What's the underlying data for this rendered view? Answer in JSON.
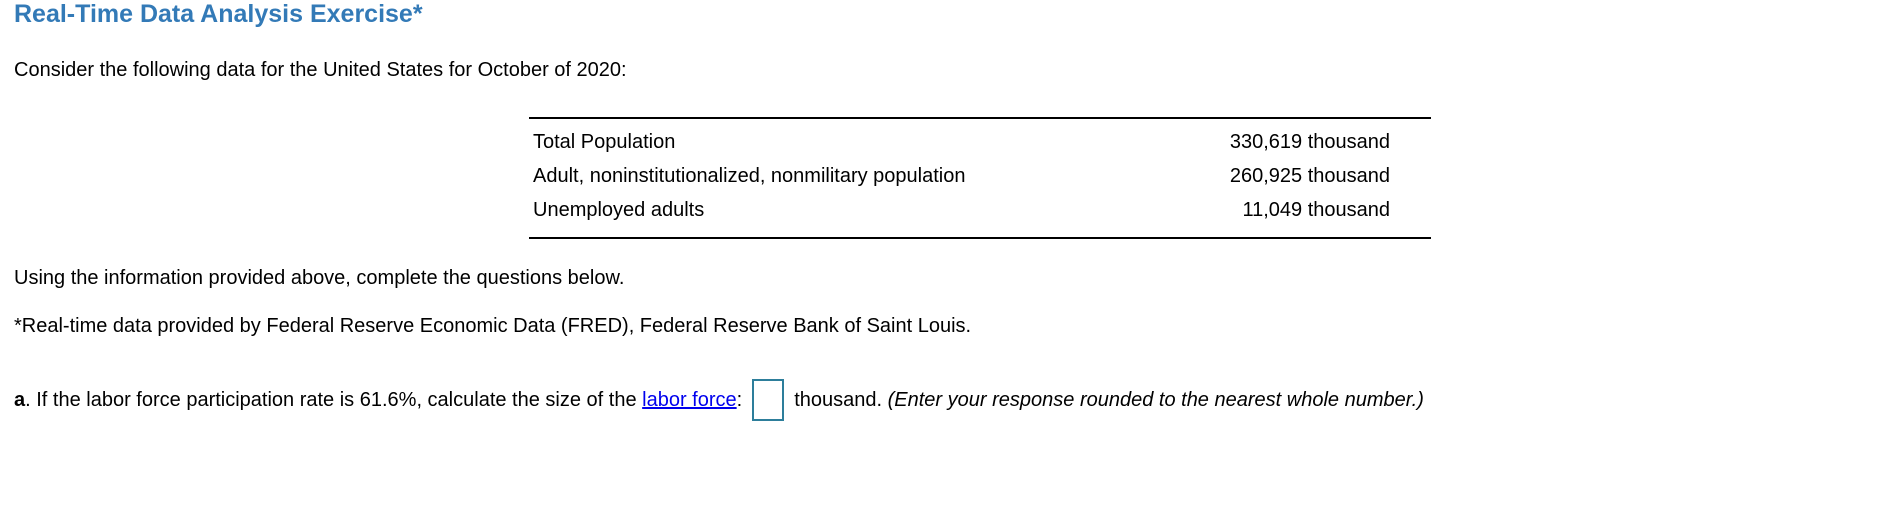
{
  "page": {
    "title": "Real-Time Data Analysis Exercise*",
    "intro": "Consider the following data for the United States for October of 2020:",
    "instructions": "Using the information provided above, complete the questions below.",
    "footnote": "*Real-time data provided by Federal Reserve Economic Data (FRED), Federal Reserve Bank of Saint Louis."
  },
  "data_table": {
    "rows": [
      {
        "label": "Total Population",
        "value": "330,619 thousand"
      },
      {
        "label": "Adult, noninstitutionalized, nonmilitary population",
        "value": "260,925 thousand"
      },
      {
        "label": "Unemployed adults",
        "value": "11,049 thousand"
      }
    ]
  },
  "question_a": {
    "marker": "a",
    "text_before_link": ". If the labor force participation rate is 61.6%, calculate the size of the ",
    "link_label": "labor force",
    "colon": ":",
    "answer_value": "",
    "text_after_input": "thousand. ",
    "note": "(Enter your response rounded to the nearest whole number.)"
  },
  "colors": {
    "heading": "#337ab7",
    "link": "#0000ee",
    "input_border": "#2d7e9b",
    "text": "#000000",
    "table_rule": "#000000"
  }
}
